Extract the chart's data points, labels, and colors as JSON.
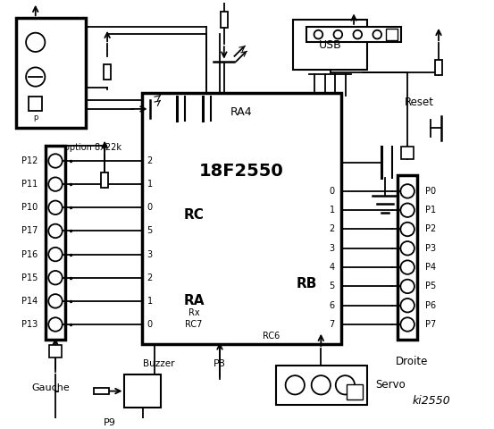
{
  "bg_color": "white",
  "ic_label": "18F2550",
  "ic_sublabel": "RA4",
  "rc_label": "RC",
  "ra_label": "RA",
  "rb_label": "RB",
  "left_connector_labels": [
    "P12",
    "P11",
    "P10",
    "P17",
    "P16",
    "P15",
    "P14",
    "P13"
  ],
  "right_connector_labels": [
    "P0",
    "P1",
    "P2",
    "P3",
    "P4",
    "P5",
    "P6",
    "P7"
  ],
  "gauche_label": "Gauche",
  "droite_label": "Droite",
  "buzzer_label": "Buzzer",
  "p9_label": "P9",
  "p8_label": "P8",
  "servo_label": "Servo",
  "usb_label": "USB",
  "reset_label": "Reset",
  "option_label": "option 8x22k",
  "ki_label": "ki2550",
  "rc_pin_nums": [
    "2",
    "1",
    "0"
  ],
  "ra_pin_nums": [
    "5",
    "3",
    "2",
    "1",
    "0"
  ],
  "rb_pin_nums": [
    "0",
    "1",
    "2",
    "3",
    "4",
    "5",
    "6",
    "7"
  ]
}
